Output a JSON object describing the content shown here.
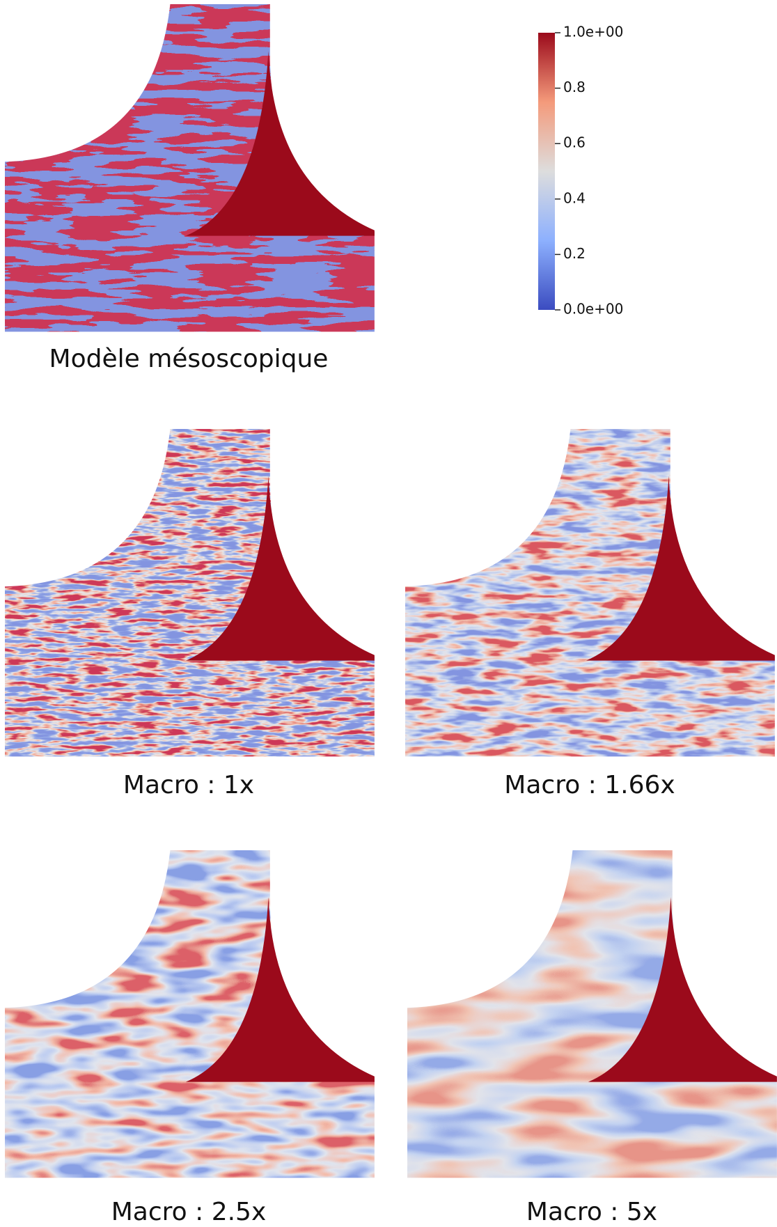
{
  "colorbar": {
    "lim": [
      0,
      1
    ],
    "ticks": [
      {
        "value": 0,
        "label": "0.0e+00"
      },
      0.2,
      0.4,
      0.6,
      0.8,
      {
        "value": 1,
        "label": "1.0e+00"
      }
    ]
  },
  "panels": [
    {
      "caption": "Modèle mésoscopique"
    },
    {
      "caption": "Macro : 1x"
    },
    {
      "caption": "Macro : 1.66x"
    },
    {
      "caption": "Macro : 2.5x"
    },
    {
      "caption": "Macro : 5x"
    }
  ]
}
